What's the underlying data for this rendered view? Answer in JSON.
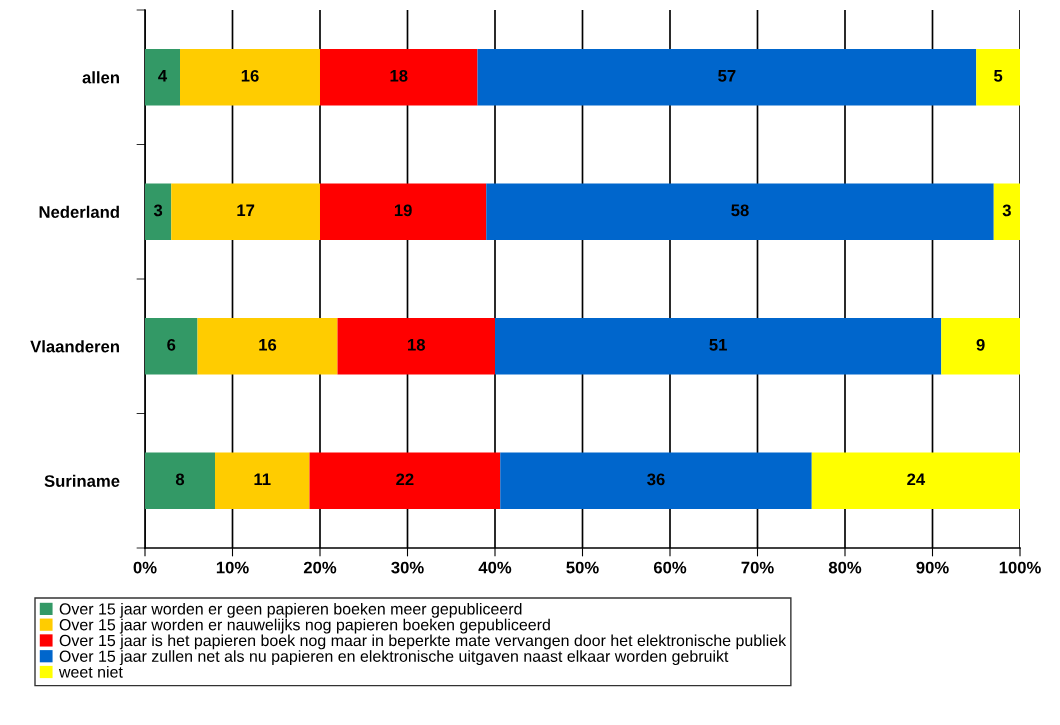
{
  "chart_data": {
    "type": "bar",
    "orientation": "horizontal",
    "stacked": true,
    "categories": [
      "allen",
      "Nederland",
      "Vlaanderen",
      "Suriname"
    ],
    "series": [
      {
        "name": "Over 15 jaar worden er geen papieren boeken meer gepubliceerd",
        "color": "#339966",
        "values": [
          4,
          3,
          6,
          8
        ],
        "value_labels": [
          "4",
          "3",
          "6",
          "8"
        ]
      },
      {
        "name": "Over 15 jaar worden er nauwelijks nog papieren boeken gepubliceerd",
        "color": "#ffcc00",
        "values": [
          16,
          17,
          16,
          10.8
        ],
        "value_labels": [
          "16",
          "17",
          "16",
          "11"
        ]
      },
      {
        "name": "Over 15 jaar is het papieren boek nog maar in beperkte mate vervangen door het elektronische publiek",
        "color": "#ff0000",
        "values": [
          18,
          19,
          18,
          21.8
        ],
        "value_labels": [
          "18",
          "19",
          "18",
          "22"
        ]
      },
      {
        "name": "Over 15 jaar zullen net als nu papieren en elektronische uitgaven naast elkaar worden gebruikt",
        "color": "#0066cc",
        "values": [
          57,
          58,
          51,
          35.6
        ],
        "value_labels": [
          "57",
          "58",
          "51",
          "36"
        ]
      },
      {
        "name": "weet niet",
        "color": "#ffff00",
        "values": [
          5,
          3,
          9,
          23.8
        ],
        "value_labels": [
          "5",
          "3",
          "9",
          "24"
        ]
      }
    ],
    "xlim": [
      0,
      100
    ],
    "xticks": [
      {
        "value": 0,
        "label": "0%"
      },
      {
        "value": 10,
        "label": "10%"
      },
      {
        "value": 20,
        "label": "20%"
      },
      {
        "value": 30,
        "label": "30%"
      },
      {
        "value": 40,
        "label": "40%"
      },
      {
        "value": 50,
        "label": "50%"
      },
      {
        "value": 60,
        "label": "60%"
      },
      {
        "value": 70,
        "label": "70%"
      },
      {
        "value": 80,
        "label": "80%"
      },
      {
        "value": 90,
        "label": "90%"
      },
      {
        "value": 100,
        "label": "100%"
      }
    ],
    "grid": "x",
    "legend": "bottom"
  }
}
